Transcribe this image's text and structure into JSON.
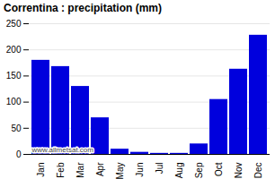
{
  "chart_data": {
    "type": "bar",
    "title": "Correntina : precipitation (mm)",
    "categories": [
      "Jan",
      "Feb",
      "Mar",
      "Apr",
      "May",
      "Jun",
      "Jul",
      "Aug",
      "Sep",
      "Oct",
      "Nov",
      "Dec"
    ],
    "values": [
      180,
      168,
      130,
      70,
      10,
      4,
      2,
      2,
      20,
      105,
      163,
      228
    ],
    "color": "#0000dd",
    "ylim": [
      0,
      250
    ],
    "yticks": [
      0,
      50,
      100,
      150,
      200,
      250
    ],
    "grid": true,
    "annotation": "www.allmetsat.com"
  }
}
